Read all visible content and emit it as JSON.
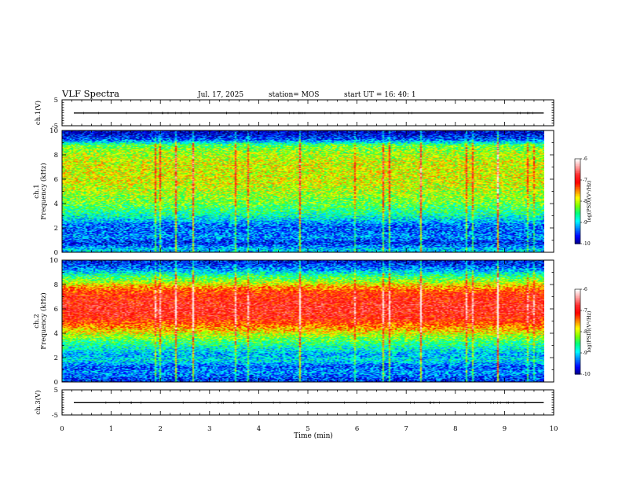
{
  "header": {
    "title": "VLF Spectra",
    "date": "Jul. 17, 2025",
    "station": "station= MOS",
    "start_time": "start UT = 16: 40: 1"
  },
  "chart_data": [
    {
      "type": "line",
      "panel": "ch1-voltage",
      "ylabel": "ch.1(V)",
      "ylim": [
        -5,
        5
      ],
      "y_ticks": [
        "5",
        "-5"
      ],
      "xlim": [
        0,
        10
      ],
      "series": [
        {
          "name": "ch.1",
          "x": [
            0,
            9.83
          ],
          "y": [
            -0.1,
            -0.1
          ]
        }
      ]
    },
    {
      "type": "heatmap",
      "panel": "ch1-spectrogram",
      "ylabel": "ch.1\nFrequency (kHz)",
      "ylim": [
        0,
        10
      ],
      "y_ticks": [
        "0",
        "2",
        "4",
        "6",
        "8",
        "10"
      ],
      "xlim": [
        0,
        10
      ],
      "colorbar": {
        "label": "log(PSD)(V²/Hz)",
        "range": [
          -10,
          -6
        ],
        "ticks": [
          "-6",
          "-7",
          "-8",
          "-9",
          "-10"
        ]
      },
      "frequency_kHz": [
        0.25,
        0.75,
        1.25,
        1.75,
        2.25,
        2.75,
        3.25,
        3.75,
        4.25,
        4.75,
        5.25,
        5.75,
        6.25,
        6.75,
        7.25,
        7.75,
        8.25,
        8.75,
        9.25,
        9.75
      ],
      "mean_log_psd": [
        -9.0,
        -9.6,
        -9.2,
        -9.4,
        -9.3,
        -8.9,
        -8.6,
        -8.4,
        -8.2,
        -8.1,
        -8.0,
        -7.9,
        -7.9,
        -7.9,
        -7.9,
        -8.0,
        -8.1,
        -8.3,
        -9.4,
        -9.8
      ]
    },
    {
      "type": "heatmap",
      "panel": "ch2-spectrogram",
      "ylabel": "ch.2\nFrequency (kHz)",
      "ylim": [
        0,
        10
      ],
      "y_ticks": [
        "0",
        "2",
        "4",
        "6",
        "8",
        "10"
      ],
      "xlim": [
        0,
        10
      ],
      "colorbar": {
        "label": "log(PSD)(V²/Hz)",
        "range": [
          -10,
          -6
        ],
        "ticks": [
          "-6",
          "-7",
          "-8",
          "-9",
          "-10"
        ]
      },
      "frequency_kHz": [
        0.25,
        0.75,
        1.25,
        1.75,
        2.25,
        2.75,
        3.25,
        3.75,
        4.25,
        4.75,
        5.25,
        5.75,
        6.25,
        6.75,
        7.25,
        7.75,
        8.25,
        8.75,
        9.25,
        9.75
      ],
      "mean_log_psd": [
        -9.5,
        -9.2,
        -9.4,
        -8.9,
        -9.1,
        -8.8,
        -8.5,
        -8.1,
        -7.7,
        -7.3,
        -7.0,
        -6.9,
        -6.9,
        -7.0,
        -7.1,
        -7.5,
        -8.1,
        -8.6,
        -9.2,
        -9.6
      ]
    },
    {
      "type": "line",
      "panel": "ch3-voltage",
      "ylabel": "ch.3(V)",
      "ylim": [
        -5,
        5
      ],
      "y_ticks": [
        "5",
        "-5"
      ],
      "xlim": [
        0,
        10
      ],
      "series": [
        {
          "name": "ch.3",
          "x": [
            0,
            9.83
          ],
          "y": [
            -0.1,
            -0.1
          ]
        }
      ]
    }
  ],
  "x_axis": {
    "label": "Time (min)",
    "range": [
      0,
      10
    ],
    "ticks": [
      "0",
      "1",
      "2",
      "3",
      "4",
      "5",
      "6",
      "7",
      "8",
      "9",
      "10"
    ],
    "data_end": 9.83
  },
  "colormap": [
    "#000080",
    "#0000ff",
    "#0080ff",
    "#00ffff",
    "#00ff80",
    "#80ff00",
    "#ffff00",
    "#ff8000",
    "#ff0000",
    "#ff3030",
    "#ffa0a0",
    "#ffffff"
  ]
}
